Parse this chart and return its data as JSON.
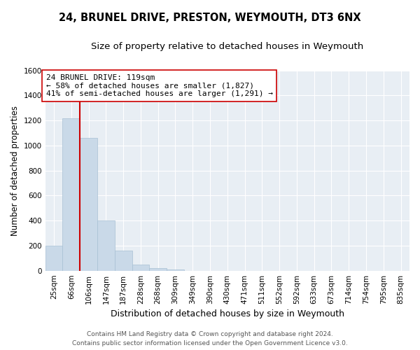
{
  "title1": "24, BRUNEL DRIVE, PRESTON, WEYMOUTH, DT3 6NX",
  "title2": "Size of property relative to detached houses in Weymouth",
  "xlabel": "Distribution of detached houses by size in Weymouth",
  "ylabel": "Number of detached properties",
  "categories": [
    "25sqm",
    "66sqm",
    "106sqm",
    "147sqm",
    "187sqm",
    "228sqm",
    "268sqm",
    "309sqm",
    "349sqm",
    "390sqm",
    "430sqm",
    "471sqm",
    "511sqm",
    "552sqm",
    "592sqm",
    "633sqm",
    "673sqm",
    "714sqm",
    "754sqm",
    "795sqm",
    "835sqm"
  ],
  "values": [
    200,
    1220,
    1060,
    400,
    160,
    50,
    20,
    10,
    0,
    0,
    0,
    0,
    0,
    0,
    0,
    0,
    0,
    0,
    0,
    0,
    0
  ],
  "bar_color": "#c9d9e8",
  "bar_edge_color": "#a8c0d4",
  "vline_color": "#cc0000",
  "vline_index": 1.5,
  "annotation_text": "24 BRUNEL DRIVE: 119sqm\n← 58% of detached houses are smaller (1,827)\n41% of semi-detached houses are larger (1,291) →",
  "annotation_box_color": "#ffffff",
  "annotation_box_edge": "#cc0000",
  "ylim": [
    0,
    1600
  ],
  "yticks": [
    0,
    200,
    400,
    600,
    800,
    1000,
    1200,
    1400,
    1600
  ],
  "bg_color": "#e8eef4",
  "grid_color": "#ffffff",
  "footer": "Contains HM Land Registry data © Crown copyright and database right 2024.\nContains public sector information licensed under the Open Government Licence v3.0.",
  "title1_fontsize": 10.5,
  "title2_fontsize": 9.5,
  "xlabel_fontsize": 9,
  "ylabel_fontsize": 8.5,
  "tick_fontsize": 7.5,
  "annotation_fontsize": 8,
  "footer_fontsize": 6.5
}
